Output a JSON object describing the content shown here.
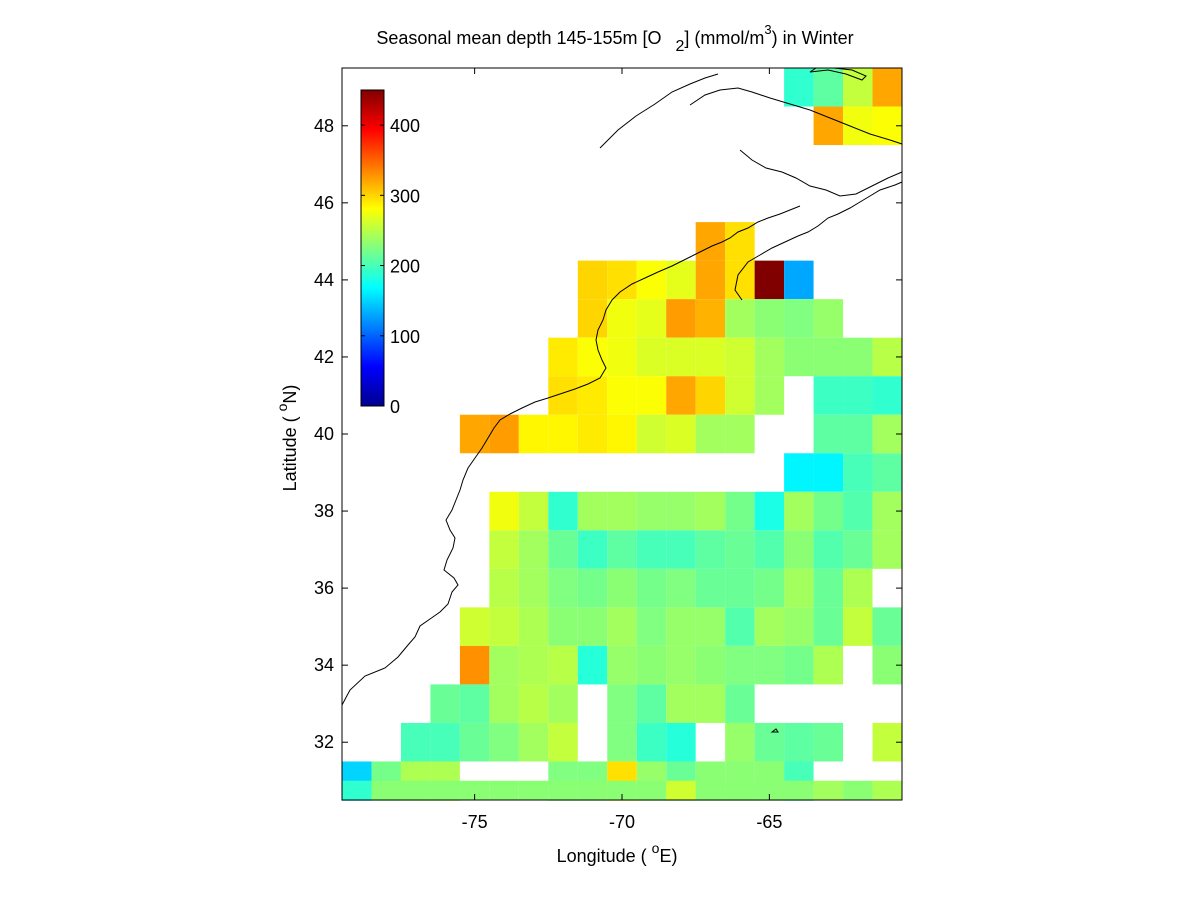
{
  "chart_data": {
    "type": "heatmap",
    "title_parts": {
      "pre": "Seasonal mean depth 145-155m [O",
      "sub": "2",
      "mid": "] (mmol/m",
      "sup": "3",
      "post": ") in  Winter"
    },
    "xlabel": {
      "pre": "Longitude ( ",
      "sup": "o",
      "post": "E)"
    },
    "ylabel": {
      "pre": "Latitude ( ",
      "sup": "o",
      "post": "N)"
    },
    "xlim": [
      -79.5,
      -60.5
    ],
    "ylim": [
      30.5,
      49.5
    ],
    "xticks": [
      -75,
      -70,
      -65
    ],
    "yticks": [
      32,
      34,
      36,
      38,
      40,
      42,
      44,
      46,
      48
    ],
    "colormap": "jet",
    "clim": [
      0,
      450
    ],
    "colorbar": {
      "ticks": [
        0,
        100,
        200,
        300,
        400
      ],
      "placement": "upper-left"
    },
    "cell_size_deg": 1,
    "grid_x_centers": [
      -79,
      -78,
      -77,
      -76,
      -75,
      -74,
      -73,
      -72,
      -71,
      -70,
      -69,
      -68,
      -67,
      -66,
      -65,
      -64,
      -63,
      -62,
      -61
    ],
    "grid_y_centers": [
      49,
      48,
      47,
      46,
      45,
      44,
      43,
      42,
      41,
      40,
      39,
      38,
      37,
      36,
      35,
      34,
      33,
      32,
      31
    ],
    "values": [
      [
        null,
        null,
        null,
        null,
        null,
        null,
        null,
        null,
        null,
        null,
        null,
        null,
        null,
        null,
        null,
        190,
        210,
        255,
        320
      ],
      [
        null,
        null,
        null,
        null,
        null,
        null,
        null,
        null,
        null,
        null,
        null,
        null,
        null,
        null,
        null,
        null,
        320,
        275,
        280
      ],
      [
        null,
        null,
        null,
        null,
        null,
        null,
        null,
        null,
        null,
        null,
        null,
        null,
        null,
        null,
        null,
        null,
        null,
        null,
        null
      ],
      [
        null,
        null,
        null,
        null,
        null,
        null,
        null,
        null,
        null,
        null,
        null,
        null,
        null,
        null,
        null,
        null,
        null,
        null,
        null
      ],
      [
        null,
        null,
        null,
        null,
        null,
        null,
        null,
        null,
        null,
        null,
        null,
        null,
        320,
        295,
        null,
        null,
        null,
        null,
        null
      ],
      [
        null,
        null,
        null,
        null,
        null,
        null,
        null,
        null,
        300,
        295,
        280,
        270,
        320,
        295,
        450,
        130,
        null,
        null,
        null
      ],
      [
        null,
        null,
        null,
        null,
        null,
        null,
        null,
        null,
        300,
        275,
        270,
        325,
        315,
        240,
        230,
        225,
        235,
        null,
        null
      ],
      [
        null,
        null,
        null,
        null,
        null,
        null,
        null,
        290,
        280,
        275,
        265,
        265,
        265,
        260,
        240,
        230,
        230,
        230,
        250
      ],
      [
        null,
        null,
        null,
        null,
        null,
        null,
        null,
        295,
        290,
        280,
        280,
        320,
        300,
        260,
        240,
        null,
        195,
        195,
        190
      ],
      [
        null,
        null,
        null,
        null,
        320,
        325,
        285,
        285,
        290,
        285,
        260,
        265,
        240,
        240,
        null,
        null,
        210,
        210,
        240
      ],
      [
        null,
        null,
        null,
        null,
        null,
        null,
        null,
        null,
        null,
        null,
        null,
        null,
        null,
        null,
        null,
        165,
        165,
        200,
        210
      ],
      [
        null,
        null,
        null,
        null,
        null,
        275,
        255,
        190,
        240,
        240,
        235,
        235,
        240,
        220,
        180,
        240,
        220,
        205,
        240
      ],
      [
        null,
        null,
        null,
        null,
        null,
        255,
        240,
        215,
        195,
        210,
        200,
        200,
        210,
        215,
        205,
        230,
        205,
        215,
        240
      ],
      [
        null,
        null,
        null,
        null,
        null,
        250,
        240,
        225,
        220,
        230,
        220,
        225,
        215,
        215,
        220,
        240,
        215,
        245,
        null
      ],
      [
        null,
        null,
        null,
        null,
        260,
        255,
        245,
        230,
        230,
        240,
        225,
        235,
        235,
        205,
        240,
        235,
        215,
        255,
        215
      ],
      [
        null,
        null,
        null,
        null,
        330,
        240,
        245,
        250,
        185,
        235,
        230,
        235,
        230,
        225,
        225,
        220,
        245,
        null,
        230
      ],
      [
        null,
        null,
        null,
        215,
        210,
        240,
        250,
        240,
        null,
        225,
        210,
        240,
        240,
        215,
        null,
        null,
        null,
        null,
        null
      ],
      [
        null,
        null,
        200,
        200,
        215,
        225,
        240,
        255,
        null,
        225,
        195,
        185,
        null,
        235,
        215,
        210,
        215,
        null,
        255
      ],
      [
        230,
        195,
        195,
        205,
        250,
        225,
        220,
        null,
        null,
        null,
        null,
        null,
        null,
        230,
        225,
        240,
        255,
        215,
        190
      ]
    ],
    "extra_rows_south": {
      "y_centers": [
        31,
        30.75
      ],
      "values": [
        [
          150,
          220,
          245,
          245,
          null,
          null,
          null,
          225,
          225,
          295,
          235,
          215,
          230,
          230,
          230,
          200,
          null,
          null,
          null
        ],
        [
          190,
          230,
          230,
          230,
          230,
          230,
          230,
          230,
          230,
          230,
          230,
          260,
          230,
          230,
          230,
          230,
          240,
          230,
          245
        ]
      ]
    }
  }
}
